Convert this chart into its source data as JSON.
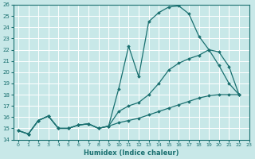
{
  "xlabel": "Humidex (Indice chaleur)",
  "bg_color": "#c8e8e8",
  "grid_color": "#ffffff",
  "line_color": "#1a7070",
  "x_values": [
    0,
    1,
    2,
    3,
    4,
    5,
    6,
    7,
    8,
    9,
    10,
    11,
    12,
    13,
    14,
    15,
    16,
    17,
    18,
    19,
    20,
    21,
    22,
    23
  ],
  "line_max": [
    14.8,
    14.5,
    15.7,
    16.1,
    15.0,
    15.0,
    15.3,
    15.4,
    15.0,
    15.2,
    18.5,
    22.3,
    19.6,
    24.5,
    25.3,
    25.8,
    25.9,
    25.2,
    23.2,
    22.0,
    20.6,
    19.0,
    18.0,
    null
  ],
  "line_mid": [
    14.8,
    14.5,
    15.7,
    16.1,
    15.0,
    15.0,
    15.3,
    15.4,
    15.0,
    15.2,
    16.5,
    17.0,
    17.3,
    18.0,
    19.0,
    20.2,
    20.8,
    21.2,
    21.5,
    22.0,
    21.8,
    20.5,
    18.0,
    null
  ],
  "line_min": [
    14.8,
    14.5,
    15.7,
    16.1,
    15.0,
    15.0,
    15.3,
    15.4,
    15.0,
    15.2,
    15.5,
    15.7,
    15.9,
    16.2,
    16.5,
    16.8,
    17.1,
    17.4,
    17.7,
    17.9,
    18.0,
    18.0,
    18.0,
    null
  ],
  "ylim": [
    14,
    26
  ],
  "xlim": [
    -0.5,
    23
  ],
  "yticks": [
    14,
    15,
    16,
    17,
    18,
    19,
    20,
    21,
    22,
    23,
    24,
    25,
    26
  ],
  "xticks": [
    0,
    1,
    2,
    3,
    4,
    5,
    6,
    7,
    8,
    9,
    10,
    11,
    12,
    13,
    14,
    15,
    16,
    17,
    18,
    19,
    20,
    21,
    22,
    23
  ]
}
